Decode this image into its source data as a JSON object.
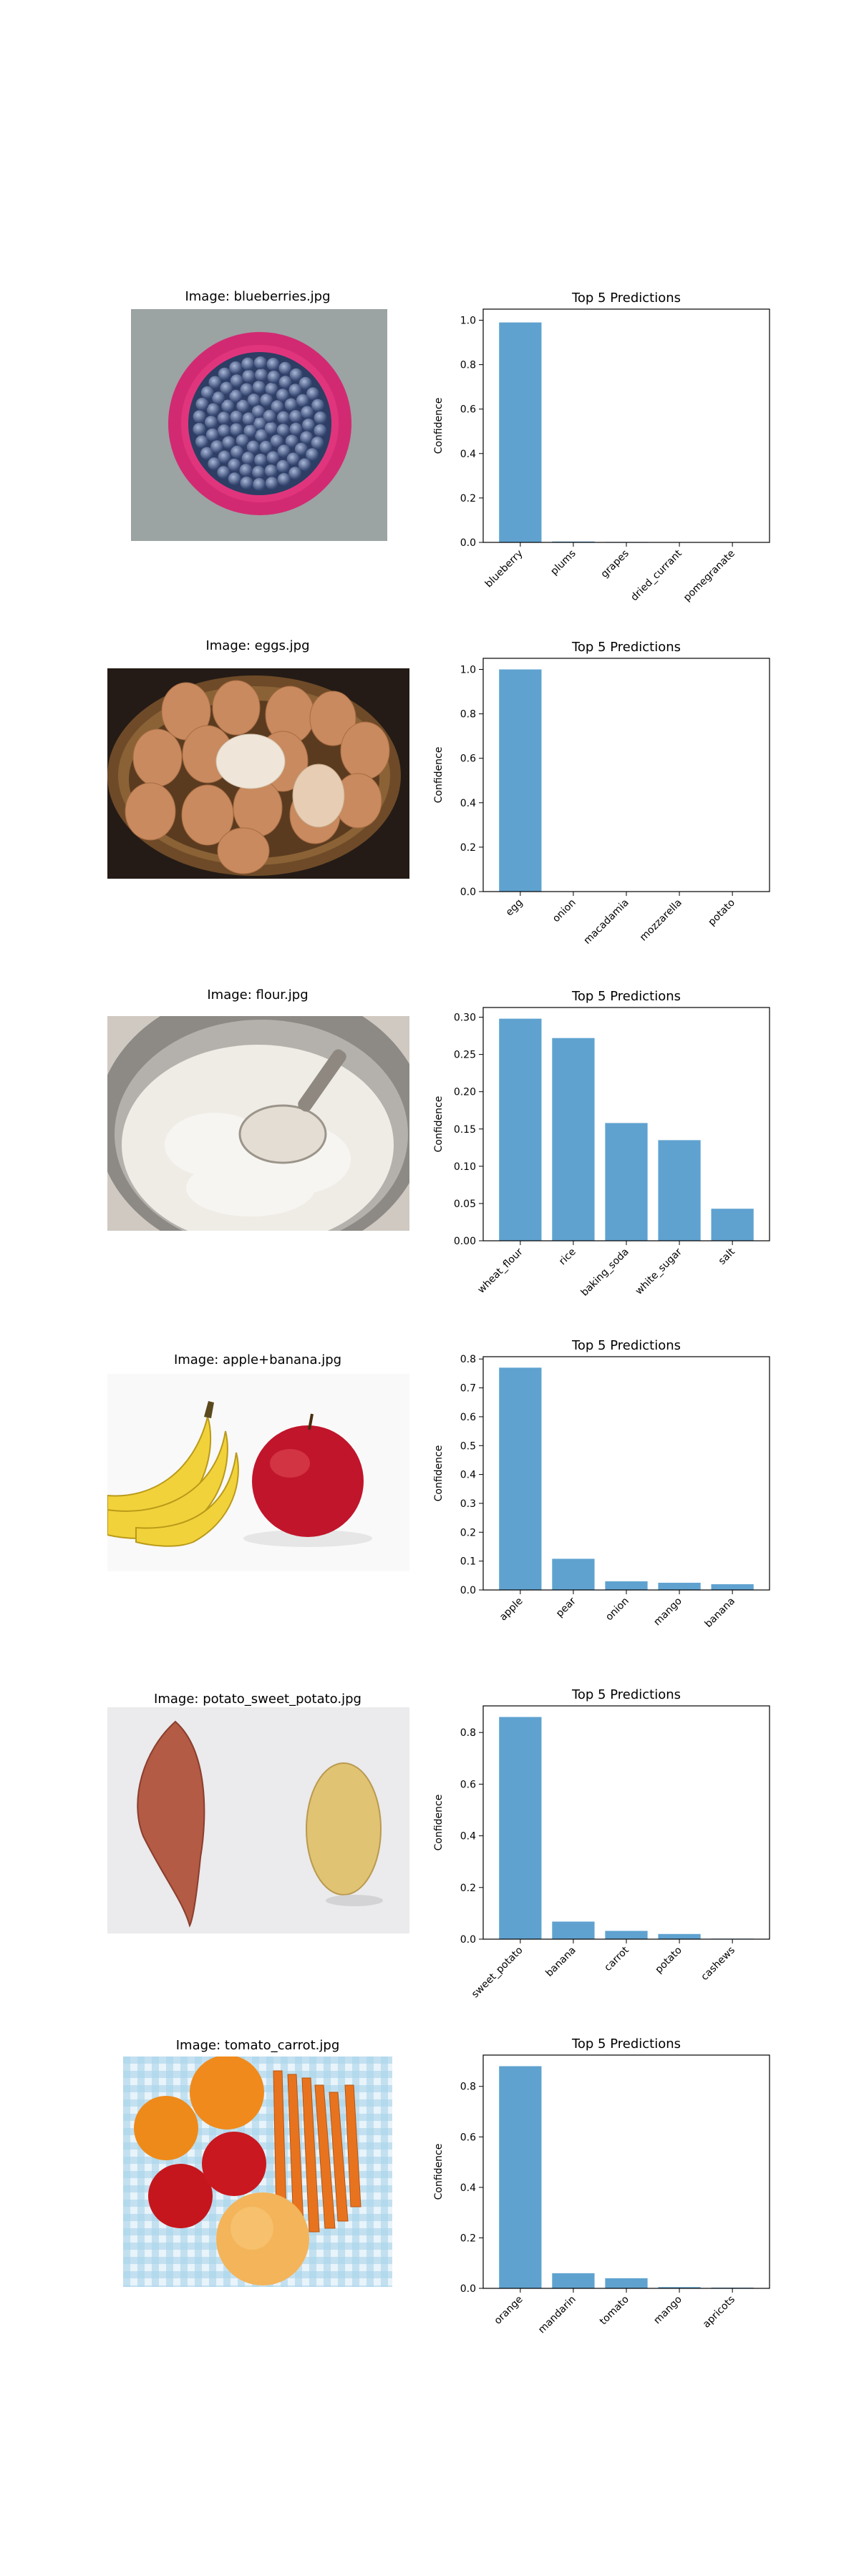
{
  "colors": {
    "bar": "#5fa2d0",
    "axis": "#000000",
    "pink_bowl": "#e0357d",
    "basket": "#7a5530"
  },
  "chart_data": [
    {
      "type": "bar",
      "image_title": "Image: blueberries.jpg",
      "image_icon": "blueberries-bowl-photo",
      "title": "Top 5 Predictions",
      "ylabel": "Confidence",
      "categories": [
        "blueberry",
        "plums",
        "grapes",
        "dried_currant",
        "pomegranate"
      ],
      "values": [
        0.99,
        0.004,
        0.002,
        0.001,
        0.001
      ],
      "ylim": [
        0,
        1.05
      ],
      "yticks": [
        "0.0",
        "0.2",
        "0.4",
        "0.6",
        "0.8",
        "1.0"
      ],
      "ytick_values": [
        0,
        0.2,
        0.4,
        0.6,
        0.8,
        1.0
      ]
    },
    {
      "type": "bar",
      "image_title": "Image: eggs.jpg",
      "image_icon": "eggs-basket-photo",
      "title": "Top 5 Predictions",
      "ylabel": "Confidence",
      "categories": [
        "egg",
        "onion",
        "macadamia",
        "mozzarella",
        "potato"
      ],
      "values": [
        1.0,
        0.0005,
        0.0003,
        0.0002,
        0.0001
      ],
      "ylim": [
        0,
        1.05
      ],
      "yticks": [
        "0.0",
        "0.2",
        "0.4",
        "0.6",
        "0.8",
        "1.0"
      ],
      "ytick_values": [
        0,
        0.2,
        0.4,
        0.6,
        0.8,
        1.0
      ]
    },
    {
      "type": "bar",
      "image_title": "Image: flour.jpg",
      "image_icon": "flour-bowl-photo",
      "title": "Top 5 Predictions",
      "ylabel": "Confidence",
      "categories": [
        "wheat_flour",
        "rice",
        "baking_soda",
        "white_sugar",
        "salt"
      ],
      "values": [
        0.298,
        0.272,
        0.158,
        0.135,
        0.043
      ],
      "ylim": [
        0,
        0.313
      ],
      "yticks": [
        "0.00",
        "0.05",
        "0.10",
        "0.15",
        "0.20",
        "0.25",
        "0.30"
      ],
      "ytick_values": [
        0,
        0.05,
        0.1,
        0.15,
        0.2,
        0.25,
        0.3
      ]
    },
    {
      "type": "bar",
      "image_title": "Image: apple+banana.jpg",
      "image_icon": "apple-banana-photo",
      "title": "Top 5 Predictions",
      "ylabel": "Confidence",
      "categories": [
        "apple",
        "pear",
        "onion",
        "mango",
        "banana"
      ],
      "values": [
        0.77,
        0.108,
        0.03,
        0.025,
        0.02
      ],
      "ylim": [
        0,
        0.808
      ],
      "yticks": [
        "0.0",
        "0.1",
        "0.2",
        "0.3",
        "0.4",
        "0.5",
        "0.6",
        "0.7",
        "0.8"
      ],
      "ytick_values": [
        0,
        0.1,
        0.2,
        0.3,
        0.4,
        0.5,
        0.6,
        0.7,
        0.8
      ]
    },
    {
      "type": "bar",
      "image_title": "Image: potato_sweet_potato.jpg",
      "image_icon": "potato-sweet-potato-photo",
      "title": "Top 5 Predictions",
      "ylabel": "Confidence",
      "categories": [
        "sweet_potato",
        "banana",
        "carrot",
        "potato",
        "cashews"
      ],
      "values": [
        0.86,
        0.068,
        0.032,
        0.02,
        0.002
      ],
      "ylim": [
        0,
        0.903
      ],
      "yticks": [
        "0.0",
        "0.2",
        "0.4",
        "0.6",
        "0.8"
      ],
      "ytick_values": [
        0,
        0.2,
        0.4,
        0.6,
        0.8
      ]
    },
    {
      "type": "bar",
      "image_title": "Image: tomato_carrot.jpg",
      "image_icon": "tomato-carrot-photo",
      "title": "Top 5 Predictions",
      "ylabel": "Confidence",
      "categories": [
        "orange",
        "mandarin",
        "tomato",
        "mango",
        "apricots"
      ],
      "values": [
        0.88,
        0.06,
        0.04,
        0.005,
        0.003
      ],
      "ylim": [
        0,
        0.924
      ],
      "yticks": [
        "0.0",
        "0.2",
        "0.4",
        "0.6",
        "0.8"
      ],
      "ytick_values": [
        0,
        0.2,
        0.4,
        0.6,
        0.8
      ]
    }
  ]
}
